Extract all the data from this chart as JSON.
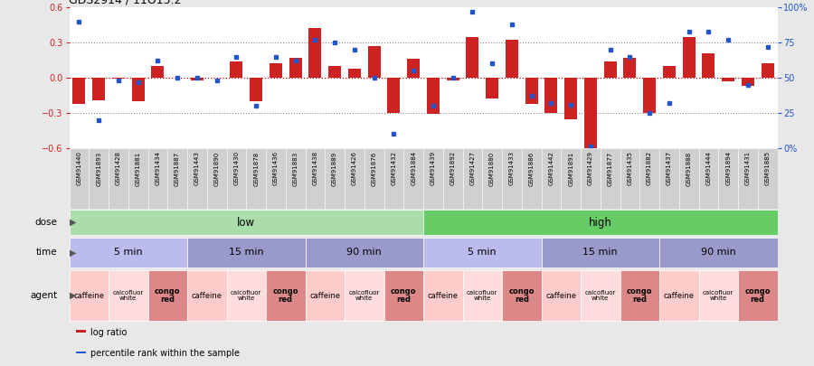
{
  "title": "GDS2914 / 11O15.2",
  "samples": [
    "GSM91440",
    "GSM91893",
    "GSM91428",
    "GSM91881",
    "GSM91434",
    "GSM91887",
    "GSM91443",
    "GSM91890",
    "GSM91430",
    "GSM91878",
    "GSM91436",
    "GSM91883",
    "GSM91438",
    "GSM91889",
    "GSM91426",
    "GSM91876",
    "GSM91432",
    "GSM91884",
    "GSM91439",
    "GSM91892",
    "GSM91427",
    "GSM91880",
    "GSM91433",
    "GSM91886",
    "GSM91442",
    "GSM91891",
    "GSM91429",
    "GSM91877",
    "GSM91435",
    "GSM91882",
    "GSM91437",
    "GSM91888",
    "GSM91444",
    "GSM91894",
    "GSM91431",
    "GSM91885"
  ],
  "log_ratio": [
    -0.22,
    -0.19,
    -0.01,
    -0.2,
    0.1,
    0.0,
    -0.02,
    0.0,
    0.14,
    -0.2,
    0.12,
    0.17,
    0.42,
    0.1,
    0.08,
    0.27,
    -0.3,
    0.16,
    -0.31,
    -0.02,
    0.35,
    -0.18,
    0.32,
    -0.22,
    -0.3,
    -0.35,
    -0.61,
    0.14,
    0.17,
    -0.3,
    0.1,
    0.35,
    0.21,
    -0.03,
    -0.07,
    0.12
  ],
  "percentile": [
    90,
    20,
    48,
    47,
    62,
    50,
    50,
    48,
    65,
    30,
    65,
    62,
    77,
    75,
    70,
    50,
    10,
    55,
    30,
    50,
    97,
    60,
    88,
    37,
    32,
    31,
    1,
    70,
    65,
    25,
    32,
    83,
    83,
    77,
    45,
    72
  ],
  "bar_color": "#cc2222",
  "dot_color": "#2255cc",
  "dose_low_color": "#aaddaa",
  "dose_high_color": "#66cc66",
  "time_color_light": "#bbbbee",
  "time_color_dark": "#9999cc",
  "agent_caffeine_color": "#ffcccc",
  "agent_calcofluor_color": "#ffdddd",
  "agent_congo_color": "#dd8888",
  "background_color": "#e8e8e8",
  "plot_bg_color": "#ffffff",
  "xtick_bg_color": "#d0d0d0",
  "ylim": [
    -0.6,
    0.6
  ],
  "y2lim": [
    0,
    100
  ],
  "yticks": [
    -0.6,
    -0.3,
    0.0,
    0.3,
    0.6
  ],
  "y2ticks": [
    0,
    25,
    50,
    75,
    100
  ],
  "y2ticklabels": [
    "0%",
    "25",
    "50",
    "75",
    "100%"
  ],
  "hlines_dotted": [
    -0.3,
    0.3
  ],
  "hline_zero_color": "#cc0000",
  "hline_dot_color": "#888888",
  "dose_groups": [
    {
      "label": "low",
      "start": 0,
      "end": 18
    },
    {
      "label": "high",
      "start": 18,
      "end": 36
    }
  ],
  "time_groups": [
    {
      "label": "5 min",
      "start": 0,
      "end": 6,
      "shade": 0
    },
    {
      "label": "15 min",
      "start": 6,
      "end": 12,
      "shade": 1
    },
    {
      "label": "90 min",
      "start": 12,
      "end": 18,
      "shade": 1
    },
    {
      "label": "5 min",
      "start": 18,
      "end": 24,
      "shade": 0
    },
    {
      "label": "15 min",
      "start": 24,
      "end": 30,
      "shade": 1
    },
    {
      "label": "90 min",
      "start": 30,
      "end": 36,
      "shade": 1
    }
  ],
  "agent_groups": [
    {
      "label": "caffeine",
      "start": 0,
      "end": 2,
      "type": "caffeine"
    },
    {
      "label": "calcofluor\nwhite",
      "start": 2,
      "end": 4,
      "type": "calcofluor"
    },
    {
      "label": "congo\nred",
      "start": 4,
      "end": 6,
      "type": "congo"
    },
    {
      "label": "caffeine",
      "start": 6,
      "end": 8,
      "type": "caffeine"
    },
    {
      "label": "calcofluor\nwhite",
      "start": 8,
      "end": 10,
      "type": "calcofluor"
    },
    {
      "label": "congo\nred",
      "start": 10,
      "end": 12,
      "type": "congo"
    },
    {
      "label": "caffeine",
      "start": 12,
      "end": 14,
      "type": "caffeine"
    },
    {
      "label": "calcofluor\nwhite",
      "start": 14,
      "end": 16,
      "type": "calcofluor"
    },
    {
      "label": "congo\nred",
      "start": 16,
      "end": 18,
      "type": "congo"
    },
    {
      "label": "caffeine",
      "start": 18,
      "end": 20,
      "type": "caffeine"
    },
    {
      "label": "calcofluor\nwhite",
      "start": 20,
      "end": 22,
      "type": "calcofluor"
    },
    {
      "label": "congo\nred",
      "start": 22,
      "end": 24,
      "type": "congo"
    },
    {
      "label": "caffeine",
      "start": 24,
      "end": 26,
      "type": "caffeine"
    },
    {
      "label": "calcofluor\nwhite",
      "start": 26,
      "end": 28,
      "type": "calcofluor"
    },
    {
      "label": "congo\nred",
      "start": 28,
      "end": 30,
      "type": "congo"
    },
    {
      "label": "caffeine",
      "start": 30,
      "end": 32,
      "type": "caffeine"
    },
    {
      "label": "calcofluor\nwhite",
      "start": 32,
      "end": 34,
      "type": "calcofluor"
    },
    {
      "label": "congo\nred",
      "start": 34,
      "end": 36,
      "type": "congo"
    }
  ],
  "legend_items": [
    {
      "color": "#cc2222",
      "label": "log ratio"
    },
    {
      "color": "#2255cc",
      "label": "percentile rank within the sample"
    }
  ],
  "row_labels": [
    "dose",
    "time",
    "agent"
  ],
  "figsize": [
    9.0,
    4.05
  ],
  "dpi": 100
}
